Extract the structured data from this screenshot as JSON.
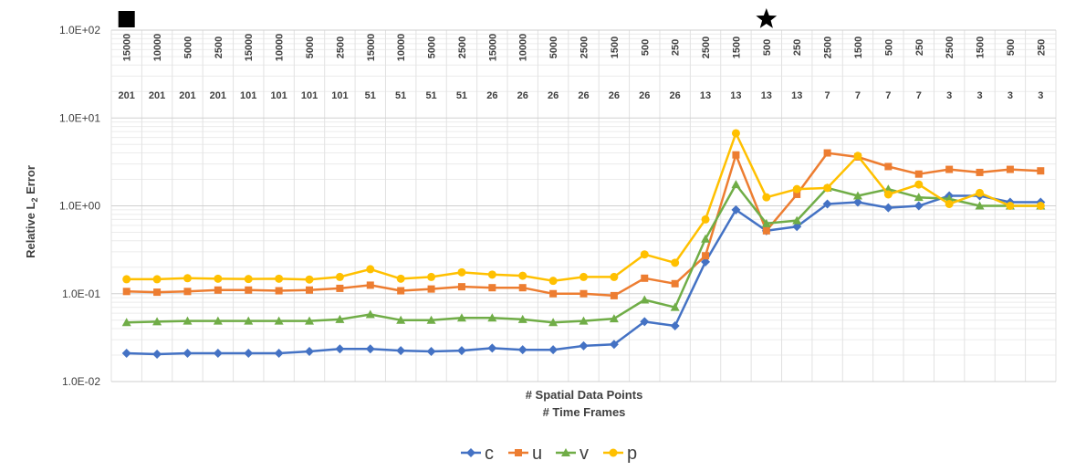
{
  "chart_data": {
    "type": "line",
    "ylabel_main": "Relative L",
    "ylabel_sub": "2",
    "ylabel_tail": " Error",
    "xlabel_line1": "# Spatial Data Points",
    "xlabel_line2": "# Time Frames",
    "y_scale": "log",
    "ylim": [
      0.01,
      100
    ],
    "y_ticks": [
      "1.0E-02",
      "1.0E-01",
      "1.0E+00",
      "1.0E+01",
      "1.0E+02"
    ],
    "y_tick_values": [
      0.01,
      0.1,
      1,
      10,
      100
    ],
    "grid": true,
    "legend_position": "bottom",
    "spatial_points": [
      "15000",
      "10000",
      "5000",
      "2500",
      "15000",
      "10000",
      "5000",
      "2500",
      "15000",
      "10000",
      "5000",
      "2500",
      "15000",
      "10000",
      "5000",
      "2500",
      "1500",
      "500",
      "250",
      "2500",
      "1500",
      "500",
      "250",
      "2500",
      "1500",
      "500",
      "250",
      "2500",
      "1500",
      "500",
      "250"
    ],
    "time_frames": [
      "201",
      "201",
      "201",
      "201",
      "101",
      "101",
      "101",
      "101",
      "51",
      "51",
      "51",
      "51",
      "26",
      "26",
      "26",
      "26",
      "26",
      "26",
      "26",
      "13",
      "13",
      "13",
      "13",
      "7",
      "7",
      "7",
      "7",
      "3",
      "3",
      "3",
      "3"
    ],
    "markers_top": [
      {
        "index": 0,
        "symbol": "square"
      },
      {
        "index": 21,
        "symbol": "star"
      }
    ],
    "series": [
      {
        "name": "c",
        "color": "#4472C4",
        "marker": "diamond",
        "values": [
          0.021,
          0.0205,
          0.021,
          0.021,
          0.021,
          0.021,
          0.022,
          0.0235,
          0.0235,
          0.0225,
          0.022,
          0.0225,
          0.024,
          0.023,
          0.023,
          0.0255,
          0.0265,
          0.048,
          0.043,
          0.23,
          0.9,
          0.52,
          0.58,
          1.05,
          1.1,
          0.95,
          1.0,
          1.3,
          1.3,
          1.1,
          1.1
        ]
      },
      {
        "name": "u",
        "color": "#ED7D31",
        "marker": "square",
        "values": [
          0.106,
          0.104,
          0.106,
          0.11,
          0.11,
          0.108,
          0.11,
          0.115,
          0.125,
          0.108,
          0.113,
          0.12,
          0.117,
          0.117,
          0.1,
          0.1,
          0.095,
          0.15,
          0.13,
          0.27,
          3.8,
          0.52,
          1.35,
          4.0,
          3.6,
          2.8,
          2.3,
          2.6,
          2.4,
          2.6,
          2.5
        ]
      },
      {
        "name": "v",
        "color": "#70AD47",
        "marker": "triangle",
        "values": [
          0.047,
          0.048,
          0.049,
          0.049,
          0.049,
          0.049,
          0.049,
          0.051,
          0.058,
          0.05,
          0.05,
          0.053,
          0.053,
          0.051,
          0.047,
          0.049,
          0.052,
          0.085,
          0.07,
          0.42,
          1.75,
          0.63,
          0.68,
          1.6,
          1.3,
          1.55,
          1.25,
          1.2,
          1.0,
          1.0,
          1.0
        ]
      },
      {
        "name": "p",
        "color": "#FFC000",
        "marker": "circle",
        "values": [
          0.146,
          0.146,
          0.15,
          0.148,
          0.147,
          0.148,
          0.145,
          0.155,
          0.19,
          0.148,
          0.155,
          0.175,
          0.165,
          0.16,
          0.14,
          0.155,
          0.155,
          0.28,
          0.225,
          0.7,
          6.7,
          1.25,
          1.55,
          1.6,
          3.7,
          1.35,
          1.75,
          1.05,
          1.4,
          1.0,
          1.0
        ]
      }
    ]
  }
}
